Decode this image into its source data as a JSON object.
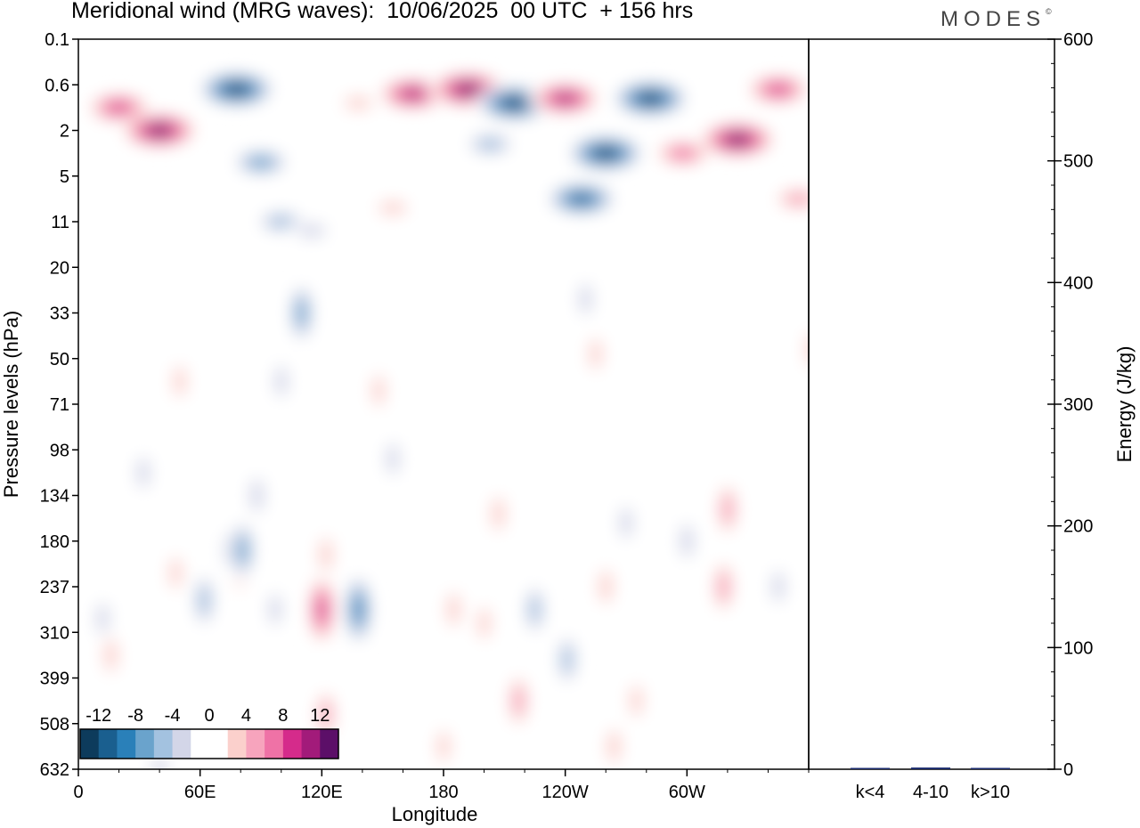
{
  "title": "Meridional wind (MRG waves):  10/06/2025  00 UTC  + 156 hrs",
  "logo": "MODES",
  "logo_mark": "©",
  "chart_data": [
    {
      "type": "heatmap",
      "title": "Meridional wind (MRG waves):  10/06/2025  00 UTC  + 156 hrs",
      "xlabel": "Longitude",
      "ylabel": "Pressure levels (hPa)",
      "x_ticks": [
        "0",
        "60E",
        "120E",
        "180",
        "120W",
        "60W"
      ],
      "y_ticks": [
        "0.1",
        "0.6",
        "2",
        "5",
        "11",
        "20",
        "33",
        "50",
        "71",
        "98",
        "134",
        "180",
        "237",
        "310",
        "399",
        "508",
        "632"
      ],
      "colorbar": {
        "labels": [
          "-12",
          "-8",
          "-4",
          "0",
          "4",
          "8",
          "12"
        ],
        "colors": [
          "#0d3b5c",
          "#1a5f8f",
          "#2a80b9",
          "#6aa3cc",
          "#a3c2e0",
          "#d3d6e8",
          "#ffffff",
          "#ffffff",
          "#fbd0cc",
          "#f7a4bd",
          "#ef72a6",
          "#d52b8b",
          "#a21b7a",
          "#5c0f68"
        ]
      },
      "blobs": [
        {
          "lon": 20,
          "lev": 1.5,
          "v": 10
        },
        {
          "lon": 40,
          "lev": 2.0,
          "v": 14
        },
        {
          "lon": 78,
          "lev": 1.1,
          "v": -14
        },
        {
          "lon": 90,
          "lev": 2.7,
          "v": -8
        },
        {
          "lon": 100,
          "lev": 4.0,
          "v": -6
        },
        {
          "lon": 110,
          "lev": 6.0,
          "v": -7
        },
        {
          "lon": 138,
          "lev": 1.4,
          "v": 3
        },
        {
          "lon": 165,
          "lev": 1.2,
          "v": 12
        },
        {
          "lon": 192,
          "lev": 1.1,
          "v": 14
        },
        {
          "lon": 215,
          "lev": 1.4,
          "v": -14
        },
        {
          "lon": 203,
          "lev": 2.3,
          "v": -6
        },
        {
          "lon": 240,
          "lev": 1.3,
          "v": 12
        },
        {
          "lon": 260,
          "lev": 2.5,
          "v": -14
        },
        {
          "lon": 248,
          "lev": 3.5,
          "v": -12
        },
        {
          "lon": 282,
          "lev": 1.3,
          "v": -14
        },
        {
          "lon": 298,
          "lev": 2.5,
          "v": 8
        },
        {
          "lon": 325,
          "lev": 2.2,
          "v": 14
        },
        {
          "lon": 345,
          "lev": 1.1,
          "v": 10
        },
        {
          "lon": 355,
          "lev": 3.5,
          "v": 6
        },
        {
          "lon": 155,
          "lev": 3.7,
          "v": 3
        },
        {
          "lon": 115,
          "lev": 4.2,
          "v": -3
        },
        {
          "lon": 100,
          "lev": 7.5,
          "v": -3
        },
        {
          "lon": 255,
          "lev": 6.9,
          "v": 3
        },
        {
          "lon": 80,
          "lev": 11.7,
          "v": 3
        },
        {
          "lon": 75,
          "lev": 11.2,
          "v": -4
        },
        {
          "lon": 32,
          "lev": 9.5,
          "v": -3
        },
        {
          "lon": 148,
          "lev": 7.7,
          "v": 3
        },
        {
          "lon": 250,
          "lev": 5.7,
          "v": -3
        },
        {
          "lon": 48,
          "lev": 11.7,
          "v": 3
        },
        {
          "lon": 12,
          "lev": 12.7,
          "v": -3
        },
        {
          "lon": 16,
          "lev": 13.5,
          "v": 4
        },
        {
          "lon": 62,
          "lev": 12.3,
          "v": -6
        },
        {
          "lon": 81,
          "lev": 11.2,
          "v": -7
        },
        {
          "lon": 88,
          "lev": 10.0,
          "v": -4
        },
        {
          "lon": 97,
          "lev": 12.5,
          "v": -3
        },
        {
          "lon": 120,
          "lev": 12.5,
          "v": 10
        },
        {
          "lon": 122,
          "lev": 11.3,
          "v": 4
        },
        {
          "lon": 122,
          "lev": 14.8,
          "v": 5
        },
        {
          "lon": 138,
          "lev": 12.5,
          "v": -10
        },
        {
          "lon": 185,
          "lev": 12.5,
          "v": 4
        },
        {
          "lon": 200,
          "lev": 12.8,
          "v": 3
        },
        {
          "lon": 217,
          "lev": 14.5,
          "v": 6
        },
        {
          "lon": 207,
          "lev": 10.4,
          "v": 4
        },
        {
          "lon": 225,
          "lev": 12.5,
          "v": -5
        },
        {
          "lon": 241,
          "lev": 13.6,
          "v": -5
        },
        {
          "lon": 260,
          "lev": 12.0,
          "v": 4
        },
        {
          "lon": 275,
          "lev": 14.5,
          "v": 3
        },
        {
          "lon": 270,
          "lev": 10.6,
          "v": -3
        },
        {
          "lon": 300,
          "lev": 11.0,
          "v": -4
        },
        {
          "lon": 320,
          "lev": 10.3,
          "v": 6
        },
        {
          "lon": 318,
          "lev": 12.0,
          "v": 6
        },
        {
          "lon": 345,
          "lev": 12.0,
          "v": -3
        },
        {
          "lon": 40,
          "lev": 16.0,
          "v": -3
        },
        {
          "lon": 180,
          "lev": 15.5,
          "v": 3
        },
        {
          "lon": 264,
          "lev": 15.5,
          "v": 4
        },
        {
          "lon": 50,
          "lev": 7.5,
          "v": 3
        },
        {
          "lon": 155,
          "lev": 9.2,
          "v": -3
        },
        {
          "lon": 362,
          "lev": 6.8,
          "v": 4
        }
      ]
    },
    {
      "type": "bar",
      "categories": [
        "k<4",
        "4-10",
        "k>10"
      ],
      "values": [
        0.4,
        1.4,
        0.3
      ],
      "ylabel": "Energy (J/kg)",
      "ylim": [
        0,
        600
      ],
      "y_ticks": [
        "0",
        "100",
        "200",
        "300",
        "400",
        "500",
        "600"
      ]
    }
  ]
}
